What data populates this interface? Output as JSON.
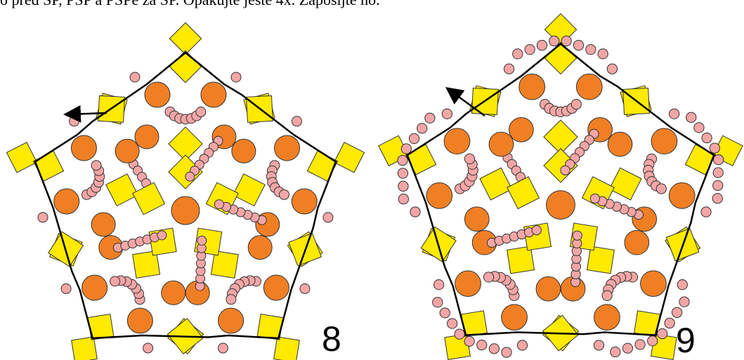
{
  "header": {
    "text": "o před SP, PSP a PSPe za SP. Opakujte ještě 4x. Zapošijte ho."
  },
  "figures": [
    {
      "label": "8"
    },
    {
      "label": "9"
    }
  ]
}
